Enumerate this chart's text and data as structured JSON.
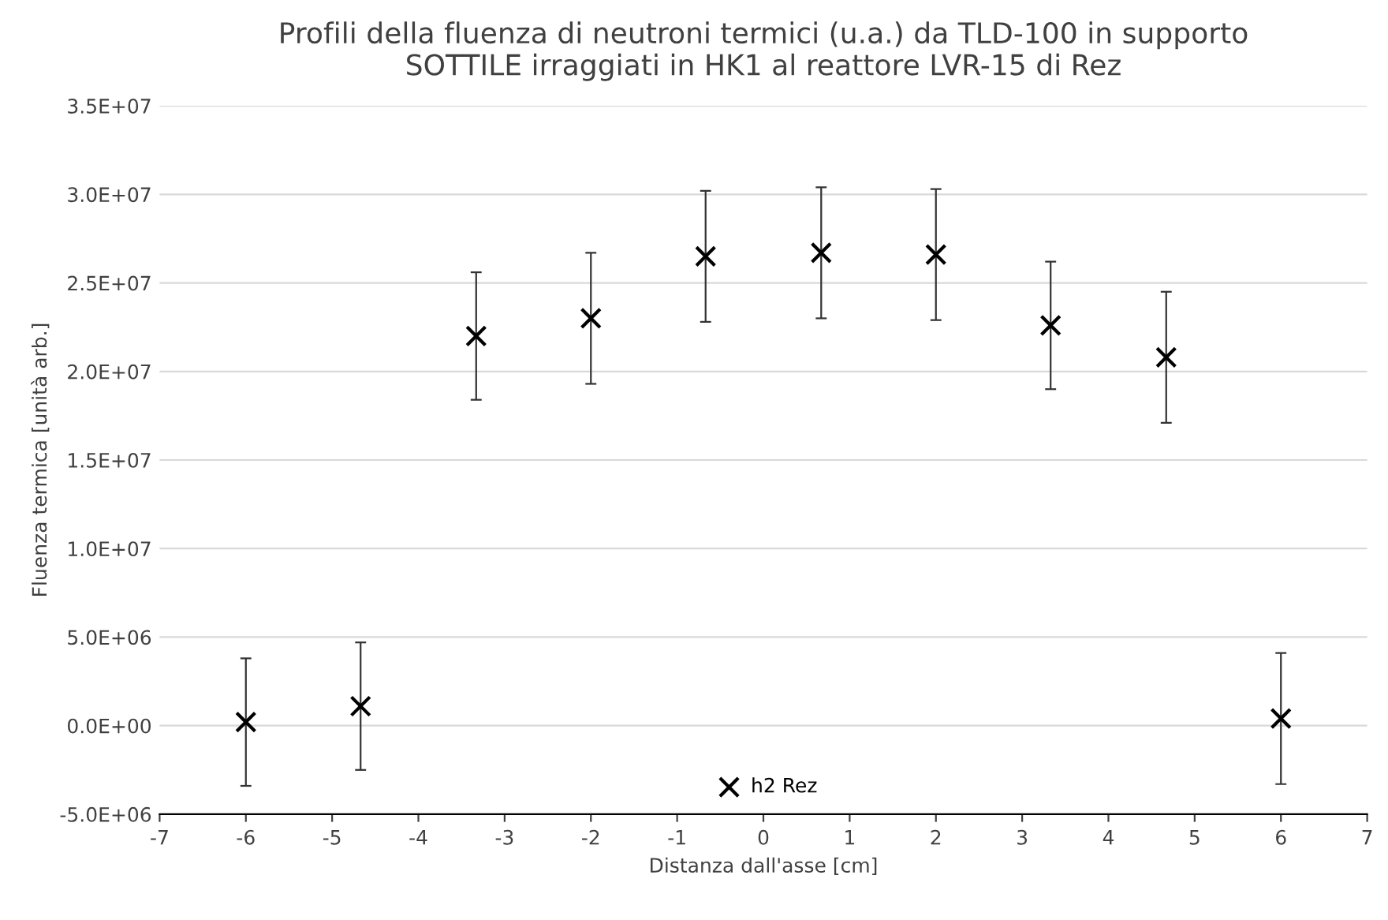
{
  "chart_data": {
    "type": "scatter",
    "title": "Profili della fluenza di neutroni termici (u.a.) da TLD-100 in supporto\nSOTTILE irraggiati in HK1 al reattore LVR-15 di Rez",
    "xlabel": "Distanza dall'asse [cm]",
    "ylabel": "Fluenza termica [unità arb.]",
    "series": [
      {
        "name": "h2 Rez",
        "color": "#000000",
        "x": [
          -6,
          -4.67,
          -3.33,
          -2,
          -0.67,
          0.67,
          2,
          3.33,
          4.67,
          6
        ],
        "values": [
          200000,
          1100000,
          22000000,
          23000000,
          26500000,
          26700000,
          26600000,
          22600000,
          20800000,
          400000
        ],
        "errors": [
          3600000,
          3600000,
          3600000,
          3700000,
          3700000,
          3700000,
          3700000,
          3600000,
          3700000,
          3700000
        ]
      }
    ],
    "xlim": [
      -7,
      7
    ],
    "xticks": [
      -7,
      -6,
      -5,
      -4,
      -3,
      -2,
      -1,
      0,
      1,
      2,
      3,
      4,
      5,
      6,
      7
    ],
    "ylim": [
      -5000000,
      35000000
    ],
    "yticks": [
      {
        "value": -5000000,
        "label": "-5.0E+06"
      },
      {
        "value": 0,
        "label": "0.0E+00"
      },
      {
        "value": 5000000,
        "label": "5.0E+06"
      },
      {
        "value": 10000000,
        "label": "1.0E+07"
      },
      {
        "value": 15000000,
        "label": "1.5E+07"
      },
      {
        "value": 20000000,
        "label": "2.0E+07"
      },
      {
        "value": 25000000,
        "label": "2.5E+07"
      },
      {
        "value": 30000000,
        "label": "3.0E+07"
      },
      {
        "value": 35000000,
        "label": "3.5E+07"
      }
    ],
    "grid": "y",
    "legend": "bottom",
    "marker": "cross"
  }
}
